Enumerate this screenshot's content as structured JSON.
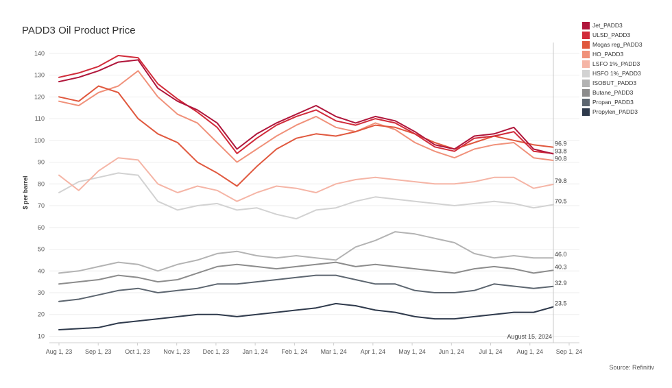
{
  "title": "PADD3 Oil Product Price",
  "source": "Source: Refinitiv",
  "chart_data": {
    "type": "line",
    "title": "PADD3 Oil Product Price",
    "xlabel": "",
    "ylabel": "$ per barrel",
    "ylim": [
      7,
      145
    ],
    "yticks": [
      10,
      20,
      30,
      40,
      50,
      60,
      70,
      80,
      90,
      100,
      110,
      120,
      130,
      140
    ],
    "xticks": [
      "Aug 1, 23",
      "Sep 1, 23",
      "Oct 1, 23",
      "Nov 1, 23",
      "Dec 1, 23",
      "Jan 1, 24",
      "Feb 1, 24",
      "Mar 1, 24",
      "Apr 1, 24",
      "May 1, 24",
      "Jun 1, 24",
      "Jul 1, 24",
      "Aug 1, 24",
      "Sep 1, 24"
    ],
    "reference_line": "August 15, 2024",
    "x": [
      "Aug 1, 23",
      "Aug 15, 23",
      "Sep 1, 23",
      "Sep 15, 23",
      "Oct 1, 23",
      "Oct 15, 23",
      "Nov 1, 23",
      "Nov 15, 23",
      "Dec 1, 23",
      "Dec 15, 23",
      "Jan 1, 24",
      "Jan 15, 24",
      "Feb 1, 24",
      "Feb 15, 24",
      "Mar 1, 24",
      "Mar 15, 24",
      "Apr 1, 24",
      "Apr 15, 24",
      "May 1, 24",
      "May 15, 24",
      "Jun 1, 24",
      "Jun 15, 24",
      "Jul 1, 24",
      "Jul 15, 24",
      "Aug 1, 24",
      "Aug 15, 24"
    ],
    "series": [
      {
        "name": "Jet_PADD3",
        "color": "#b0163b",
        "end_label": "93.8",
        "values": [
          127,
          129,
          132,
          136,
          137,
          124,
          118,
          114,
          108,
          96,
          103,
          108,
          112,
          116,
          111,
          108,
          111,
          109,
          104,
          98,
          96,
          102,
          103,
          106,
          96,
          93.8
        ]
      },
      {
        "name": "ULSD_PADD3",
        "color": "#d12b3a",
        "end_label": "",
        "values": [
          129,
          131,
          134,
          139,
          138,
          126,
          119,
          113,
          106,
          94,
          101,
          107,
          111,
          114,
          109,
          107,
          110,
          108,
          103,
          97,
          95,
          101,
          102,
          104,
          95,
          94
        ]
      },
      {
        "name": "Mogas reg_PADD3",
        "color": "#e0583e",
        "end_label": "96.9",
        "values": [
          120,
          118,
          125,
          122,
          110,
          103,
          99,
          90,
          85,
          79,
          88,
          96,
          101,
          103,
          102,
          104,
          107,
          106,
          103,
          99,
          96,
          99,
          102,
          100,
          98,
          96.9
        ]
      },
      {
        "name": "HO_PADD3",
        "color": "#f0917a",
        "end_label": "90.8",
        "values": [
          118,
          116,
          122,
          125,
          132,
          120,
          112,
          108,
          99,
          90,
          96,
          102,
          107,
          111,
          106,
          104,
          108,
          105,
          99,
          95,
          92,
          96,
          98,
          99,
          92,
          90.8
        ]
      },
      {
        "name": "LSFO 1%_PADD3",
        "color": "#f5b5a6",
        "end_label": "79.8",
        "values": [
          84,
          77,
          86,
          92,
          91,
          80,
          76,
          79,
          77,
          72,
          76,
          79,
          78,
          76,
          80,
          82,
          83,
          82,
          81,
          80,
          80,
          81,
          83,
          83,
          78,
          79.8
        ]
      },
      {
        "name": "HSFO 1%_PADD3",
        "color": "#d2d2d2",
        "end_label": "70.5",
        "values": [
          76,
          81,
          83,
          85,
          84,
          72,
          68,
          70,
          71,
          68,
          69,
          66,
          64,
          68,
          69,
          72,
          74,
          73,
          72,
          71,
          70,
          71,
          72,
          71,
          69,
          70.5
        ]
      },
      {
        "name": "ISOBUT_PADD3",
        "color": "#b3b3b3",
        "end_label": "46.0",
        "values": [
          39,
          40,
          42,
          44,
          43,
          40,
          43,
          45,
          48,
          49,
          47,
          46,
          47,
          46,
          45,
          51,
          54,
          58,
          57,
          55,
          53,
          48,
          46,
          47,
          46,
          46.0
        ]
      },
      {
        "name": "Butane_PADD3",
        "color": "#8c8c8c",
        "end_label": "40.3",
        "values": [
          34,
          35,
          36,
          38,
          37,
          35,
          36,
          39,
          42,
          43,
          42,
          41,
          42,
          43,
          44,
          42,
          43,
          42,
          41,
          40,
          39,
          41,
          42,
          41,
          39,
          40.3
        ]
      },
      {
        "name": "Propan_PADD3",
        "color": "#5d6670",
        "end_label": "32.9",
        "values": [
          26,
          27,
          29,
          31,
          32,
          30,
          31,
          32,
          34,
          34,
          35,
          36,
          37,
          38,
          38,
          36,
          34,
          34,
          31,
          30,
          30,
          31,
          34,
          33,
          32,
          32.9
        ]
      },
      {
        "name": "Propylen_PADD3",
        "color": "#2f3a4c",
        "end_label": "23.5",
        "values": [
          13,
          13.5,
          14,
          16,
          17,
          18,
          19,
          20,
          20,
          19,
          20,
          21,
          22,
          23,
          25,
          24,
          22,
          21,
          19,
          18,
          18,
          19,
          20,
          21,
          21,
          23.5
        ]
      }
    ]
  }
}
